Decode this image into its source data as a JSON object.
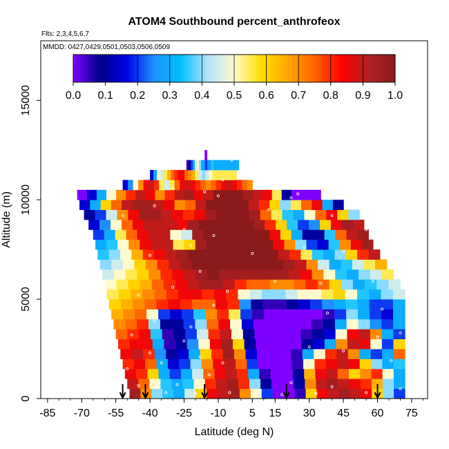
{
  "chart_data": {
    "type": "heatmap",
    "title": "ATOM4 Southbound percent_anthrofeox",
    "subtitle_flights": "Flts: 2,3,4,5,6,7",
    "subtitle_dates": "MMDD: 0427,0429,0501,0503,0506,0509",
    "xlabel": "Latitude (deg N)",
    "ylabel": "Altitude (m)",
    "xlim": [
      -88,
      82
    ],
    "ylim": [
      0,
      18000
    ],
    "x_ticks": [
      -85,
      -70,
      -55,
      -40,
      -25,
      -10,
      5,
      15,
      30,
      45,
      60,
      75
    ],
    "y_ticks": [
      0,
      5000,
      10000,
      15000
    ],
    "colorbar": {
      "ticks": [
        "0.0",
        "0.1",
        "0.2",
        "0.3",
        "0.4",
        "0.5",
        "0.6",
        "0.7",
        "0.8",
        "0.9",
        "1.0"
      ],
      "stops": [
        "#7f00ff",
        "#00008b",
        "#0000e6",
        "#1e90ff",
        "#00bfff",
        "#aee3ff",
        "#fffacd",
        "#ffe000",
        "#ffa500",
        "#ff6600",
        "#ff0000",
        "#b22222",
        "#8b1a1a"
      ]
    },
    "arrows_lat": [
      -52,
      -42,
      -16,
      20,
      60
    ],
    "rows": [
      {
        "alt": 250,
        "lat_min": -49,
        "lat_max": 72,
        "values": [
          0.95,
          0.7,
          0.4,
          0.35,
          0.3,
          0.45,
          0.6,
          0.85,
          0.9,
          0.95,
          0.7,
          0.5,
          0.2,
          0.0,
          0.0,
          0.05,
          0.6,
          0.85,
          0.9,
          0.95,
          0.9,
          0.85,
          0.6,
          0.4,
          0.2
        ]
      },
      {
        "alt": 750,
        "lat_min": -50,
        "lat_max": 72,
        "values": [
          0.9,
          0.75,
          0.5,
          0.35,
          0.3,
          0.35,
          0.5,
          0.8,
          0.9,
          0.95,
          0.8,
          0.4,
          0.1,
          0.0,
          0.0,
          0.1,
          0.7,
          0.9,
          0.95,
          0.9,
          0.85,
          0.8,
          0.65,
          0.4,
          0.3
        ]
      },
      {
        "alt": 1250,
        "lat_min": -51,
        "lat_max": 72,
        "values": [
          0.85,
          0.8,
          0.6,
          0.3,
          0.2,
          0.3,
          0.45,
          0.75,
          0.85,
          0.9,
          0.8,
          0.3,
          0.05,
          0.0,
          0.0,
          0.1,
          0.65,
          0.85,
          0.9,
          0.75,
          0.6,
          0.7,
          0.8,
          0.5,
          0.3
        ]
      },
      {
        "alt": 1750,
        "lat_min": -52,
        "lat_max": 72,
        "values": [
          0.8,
          0.85,
          0.75,
          0.3,
          0.15,
          0.2,
          0.4,
          0.7,
          0.85,
          0.9,
          0.75,
          0.2,
          0.0,
          0.0,
          0.0,
          0.05,
          0.5,
          0.8,
          0.85,
          0.9,
          0.85,
          0.6,
          0.4,
          0.3,
          0.35
        ]
      },
      {
        "alt": 2250,
        "lat_min": -53,
        "lat_max": 72,
        "values": [
          0.85,
          0.9,
          0.8,
          0.25,
          0.1,
          0.15,
          0.3,
          0.6,
          0.8,
          0.95,
          0.7,
          0.15,
          0.0,
          0.0,
          0.0,
          0.05,
          0.3,
          0.5,
          0.8,
          0.9,
          0.7,
          0.3,
          0.2,
          0.3,
          0.75
        ]
      },
      {
        "alt": 2750,
        "lat_min": -54,
        "lat_max": 72,
        "values": [
          0.8,
          0.85,
          0.85,
          0.3,
          0.05,
          0.1,
          0.25,
          0.5,
          0.85,
          0.95,
          0.6,
          0.1,
          0.0,
          0.0,
          0.0,
          0.0,
          0.1,
          0.15,
          0.3,
          0.7,
          0.9,
          0.85,
          0.5,
          0.2,
          0.6
        ]
      },
      {
        "alt": 3250,
        "lat_min": -55,
        "lat_max": 72,
        "values": [
          0.75,
          0.8,
          0.85,
          0.35,
          0.05,
          0.1,
          0.2,
          0.45,
          0.8,
          0.9,
          0.5,
          0.1,
          0.0,
          0.0,
          0.0,
          0.0,
          0.05,
          0.1,
          0.15,
          0.5,
          0.85,
          0.9,
          0.7,
          0.3,
          0.2
        ]
      },
      {
        "alt": 3750,
        "lat_min": -56,
        "lat_max": 72,
        "values": [
          0.7,
          0.75,
          0.8,
          0.4,
          0.1,
          0.1,
          0.2,
          0.4,
          0.75,
          0.85,
          0.5,
          0.15,
          0.0,
          0.0,
          0.0,
          0.0,
          0.0,
          0.05,
          0.1,
          0.3,
          0.5,
          0.4,
          0.25,
          0.2,
          0.3
        ]
      },
      {
        "alt": 4250,
        "lat_min": -57,
        "lat_max": 72,
        "values": [
          0.65,
          0.7,
          0.75,
          0.5,
          0.2,
          0.15,
          0.2,
          0.35,
          0.7,
          0.8,
          0.55,
          0.2,
          0.05,
          0.0,
          0.0,
          0.0,
          0.0,
          0.0,
          0.05,
          0.2,
          0.4,
          0.3,
          0.2,
          0.15,
          0.3
        ]
      },
      {
        "alt": 4750,
        "lat_min": -58,
        "lat_max": 72,
        "values": [
          0.6,
          0.65,
          0.7,
          0.75,
          0.8,
          0.85,
          0.8,
          0.75,
          0.75,
          0.85,
          0.8,
          0.25,
          0.1,
          0.05,
          0.05,
          0.1,
          0.15,
          0.2,
          0.25,
          0.3,
          0.35,
          0.3,
          0.2,
          0.2,
          0.3
        ]
      },
      {
        "alt": 5250,
        "lat_min": -59,
        "lat_max": 72,
        "values": [
          0.55,
          0.6,
          0.65,
          0.7,
          0.75,
          0.8,
          0.85,
          0.85,
          0.8,
          0.85,
          0.8,
          0.5,
          0.45,
          0.4,
          0.4,
          0.45,
          0.5,
          0.5,
          0.55,
          0.6,
          0.5,
          0.35,
          0.3,
          0.4,
          0.45
        ]
      },
      {
        "alt": 5750,
        "lat_min": -60,
        "lat_max": 70,
        "values": [
          0.5,
          0.55,
          0.6,
          0.65,
          0.75,
          0.8,
          0.85,
          0.9,
          0.95,
          0.95,
          0.9,
          0.8,
          0.75,
          0.75,
          0.7,
          0.7,
          0.75,
          0.8,
          0.75,
          0.6,
          0.4,
          0.3,
          0.35,
          0.4,
          0.45
        ]
      },
      {
        "alt": 6250,
        "lat_min": -61,
        "lat_max": 67,
        "values": [
          0.45,
          0.5,
          0.55,
          0.6,
          0.7,
          0.8,
          0.85,
          0.9,
          0.95,
          1.0,
          0.95,
          0.95,
          0.95,
          0.95,
          0.95,
          0.95,
          0.9,
          0.85,
          0.7,
          0.5,
          0.35,
          0.3,
          0.4,
          0.45,
          0.55
        ]
      },
      {
        "alt": 6750,
        "lat_min": -62,
        "lat_max": 64,
        "values": [
          0.4,
          0.45,
          0.5,
          0.6,
          0.7,
          0.8,
          0.9,
          0.95,
          1.0,
          1.0,
          1.0,
          1.0,
          1.0,
          1.0,
          1.0,
          1.0,
          0.95,
          0.9,
          0.7,
          0.45,
          0.3,
          0.35,
          0.45,
          0.55,
          0.65
        ]
      },
      {
        "alt": 7250,
        "lat_min": -63,
        "lat_max": 61,
        "values": [
          0.35,
          0.4,
          0.5,
          0.65,
          0.8,
          0.85,
          0.9,
          0.95,
          1.0,
          1.0,
          1.0,
          1.0,
          1.0,
          1.0,
          1.0,
          1.0,
          0.9,
          0.8,
          0.55,
          0.35,
          0.3,
          0.4,
          0.6,
          0.8,
          0.9
        ]
      },
      {
        "alt": 7750,
        "lat_min": -64,
        "lat_max": 58,
        "values": [
          0.3,
          0.35,
          0.5,
          0.7,
          0.85,
          0.9,
          0.9,
          0.55,
          0.6,
          0.95,
          1.0,
          1.0,
          1.0,
          1.0,
          1.0,
          1.0,
          0.85,
          0.7,
          0.4,
          0.2,
          0.15,
          0.35,
          0.7,
          0.85,
          0.95
        ]
      },
      {
        "alt": 8250,
        "lat_min": -65,
        "lat_max": 56,
        "values": [
          0.2,
          0.3,
          0.55,
          0.75,
          0.85,
          0.9,
          0.9,
          0.5,
          0.45,
          0.95,
          1.0,
          1.0,
          1.0,
          1.0,
          1.0,
          1.0,
          0.85,
          0.6,
          0.3,
          0.1,
          0.1,
          0.35,
          0.75,
          0.9,
          0.95
        ]
      },
      {
        "alt": 8750,
        "lat_min": -67,
        "lat_max": 54,
        "values": [
          0.15,
          0.25,
          0.5,
          0.75,
          0.85,
          0.9,
          0.9,
          0.9,
          0.85,
          0.95,
          1.0,
          1.0,
          1.0,
          1.0,
          1.0,
          0.95,
          0.8,
          0.6,
          0.35,
          0.2,
          0.25,
          0.6,
          0.85,
          0.95,
          0.9
        ]
      },
      {
        "alt": 9250,
        "lat_min": -69,
        "lat_max": 52,
        "values": [
          0.1,
          0.2,
          0.45,
          0.7,
          0.85,
          0.95,
          0.95,
          0.9,
          0.85,
          0.8,
          0.85,
          0.95,
          1.0,
          1.0,
          1.0,
          0.95,
          0.75,
          0.55,
          0.35,
          0.3,
          0.5,
          0.75,
          0.85,
          0.6,
          0.4
        ]
      },
      {
        "alt": 9750,
        "lat_min": -71,
        "lat_max": 45,
        "values": [
          0.15,
          0.3,
          0.6,
          0.75,
          0.9,
          0.95,
          0.95,
          0.9,
          0.85,
          0.7,
          0.75,
          0.9,
          1.0,
          1.0,
          1.0,
          1.0,
          0.9,
          0.8,
          0.6,
          0.4,
          0.55,
          0.75,
          0.85,
          0.3,
          0.1
        ]
      },
      {
        "alt": 10250,
        "lat_min": -72,
        "lat_max": 35,
        "values": [
          0.0,
          0.15,
          0.3,
          0.5,
          0.7,
          0.8,
          0.9,
          0.85,
          0.7,
          0.8,
          0.9,
          0.95,
          0.85,
          0.9,
          1.0,
          1.0,
          1.0,
          0.95,
          0.9,
          0.85,
          0.55,
          0.1,
          0.0,
          0.0,
          0.0
        ]
      },
      {
        "alt": 10750,
        "lat_min": -52,
        "lat_max": 5,
        "values": [
          0.15,
          0.25,
          0.5,
          0.7,
          0.85,
          0.9,
          0.8,
          0.55,
          0.45,
          0.55,
          0.75,
          0.85,
          0.9,
          0.85,
          0.8,
          0.75,
          0.7,
          0.75,
          0.8,
          0.85,
          0.9,
          0.85,
          0.8,
          0.75,
          0.7
        ]
      },
      {
        "alt": 11250,
        "lat_min": -40,
        "lat_max": -2,
        "values": [
          0.15,
          0.3,
          0.5,
          0.45,
          0.55,
          0.65,
          0.75,
          0.8,
          0.85,
          0.85,
          0.75,
          0.7,
          0.65,
          0.55,
          0.45,
          0.4,
          0.45,
          0.5,
          0.55,
          0.55,
          0.55,
          0.55,
          0.55,
          0.55,
          0.55
        ]
      },
      {
        "alt": 11750,
        "lat_min": -24,
        "lat_max": -1,
        "values": [
          0.05,
          0.1,
          0.2,
          0.3,
          0.45,
          0.5,
          0.4,
          0.3,
          0.25,
          0.2,
          0.25,
          0.3,
          0.35,
          0.3,
          0.3,
          0.3,
          0.3,
          0.3,
          0.3,
          0.3,
          0.3,
          0.3,
          0.3,
          0.3,
          0.3
        ]
      },
      {
        "alt": 12250,
        "lat_min": -16,
        "lat_max": -15,
        "values": [
          0.0
        ]
      }
    ],
    "points": [
      [
        -52,
        250
      ],
      [
        -45,
        650
      ],
      [
        -33,
        300
      ],
      [
        -28,
        700
      ],
      [
        -20,
        250
      ],
      [
        -14,
        1200
      ],
      [
        -5,
        300
      ],
      [
        8,
        350
      ],
      [
        18,
        200
      ],
      [
        22,
        800
      ],
      [
        33,
        250
      ],
      [
        40,
        600
      ],
      [
        55,
        300
      ],
      [
        65,
        1100
      ],
      [
        70,
        500
      ],
      [
        -50,
        1500
      ],
      [
        -40,
        2300
      ],
      [
        -35,
        1800
      ],
      [
        -25,
        2900
      ],
      [
        -18,
        2100
      ],
      [
        -8,
        1800
      ],
      [
        30,
        2600
      ],
      [
        45,
        2400
      ],
      [
        60,
        3100
      ],
      [
        66,
        1900
      ],
      [
        -48,
        3200
      ],
      [
        -38,
        3900
      ],
      [
        -22,
        3600
      ],
      [
        -12,
        4700
      ],
      [
        38,
        4300
      ],
      [
        50,
        3800
      ],
      [
        62,
        4500
      ],
      [
        70,
        3300
      ],
      [
        -45,
        5200
      ],
      [
        -30,
        5600
      ],
      [
        -18,
        6400
      ],
      [
        -6,
        5400
      ],
      [
        15,
        5900
      ],
      [
        35,
        5800
      ],
      [
        58,
        5900
      ],
      [
        66,
        6700
      ],
      [
        -40,
        7200
      ],
      [
        -22,
        7700
      ],
      [
        -12,
        8200
      ],
      [
        5,
        7300
      ],
      [
        28,
        7600
      ],
      [
        45,
        7400
      ],
      [
        55,
        8500
      ],
      [
        -52,
        9200
      ],
      [
        -38,
        9700
      ],
      [
        -25,
        8500
      ],
      [
        -10,
        10200
      ],
      [
        12,
        9500
      ],
      [
        22,
        10100
      ],
      [
        32,
        10600
      ],
      [
        40,
        9200
      ],
      [
        -30,
        10600
      ],
      [
        -16,
        10400
      ],
      [
        -8,
        11000
      ],
      [
        -4,
        12000
      ],
      [
        25,
        10300
      ]
    ]
  }
}
